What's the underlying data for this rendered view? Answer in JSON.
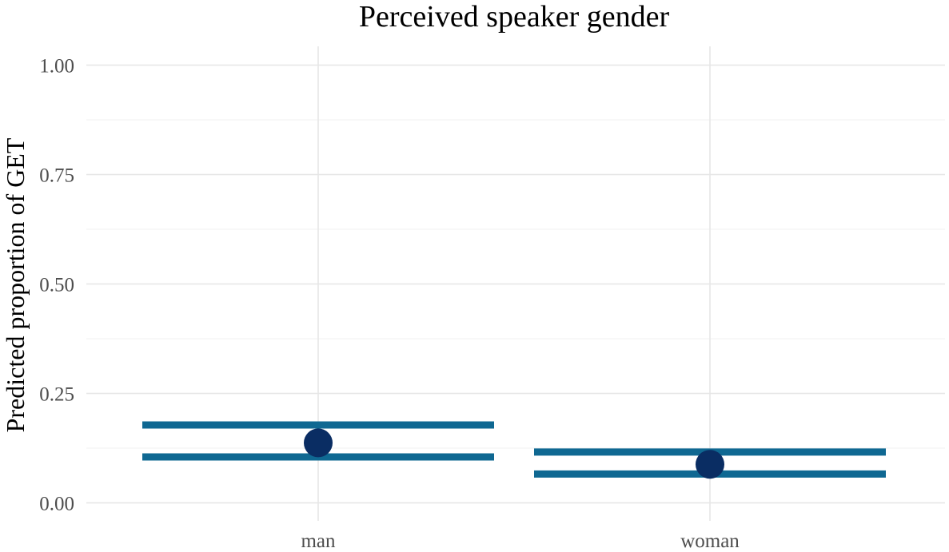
{
  "chart_data": {
    "type": "scatter",
    "title": "Perceived speaker gender",
    "xlabel": "",
    "ylabel": "Predicted proportion of GET",
    "categories": [
      "man",
      "woman"
    ],
    "ylim": [
      0,
      1.0
    ],
    "yticks": [
      "0.00",
      "0.25",
      "0.50",
      "0.75",
      "1.00"
    ],
    "grid": true,
    "legend": "none",
    "series": [
      {
        "estimate": [
          0.137,
          0.088
        ],
        "lower": [
          0.105,
          0.066
        ],
        "upper": [
          0.178,
          0.116
        ]
      }
    ],
    "colors": {
      "point": "#0a2d63",
      "interval": "#0f6892",
      "grid": "#e6e6e6",
      "tick_text": "#4d4d4d"
    }
  }
}
